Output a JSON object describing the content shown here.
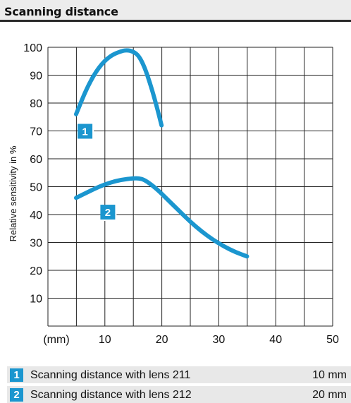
{
  "header": {
    "title": "Scanning distance"
  },
  "chart_data": {
    "type": "line",
    "title": "",
    "ylabel": "Relative sensitivity in %",
    "xlabel": "",
    "x_unit_label": "(mm)",
    "xlim": [
      0,
      50
    ],
    "ylim": [
      0,
      100
    ],
    "x_ticks": [
      10,
      20,
      30,
      40,
      50
    ],
    "y_ticks": [
      10,
      20,
      30,
      40,
      50,
      60,
      70,
      80,
      90,
      100
    ],
    "grid": true,
    "line_color": "#1b96cf",
    "series": [
      {
        "name": "1",
        "x": [
          0,
          2,
          4,
          6,
          8,
          9,
          10,
          11,
          12,
          13,
          14,
          15
        ],
        "y": [
          76,
          86,
          93,
          97,
          98.7,
          99,
          98.5,
          97,
          93,
          87,
          80,
          72
        ]
      },
      {
        "name": "2",
        "x": [
          0,
          2,
          4,
          6,
          8,
          10,
          11,
          12,
          14,
          16,
          18,
          20,
          22,
          24,
          26,
          28,
          30
        ],
        "y": [
          46,
          48,
          50,
          51.5,
          52.5,
          53,
          53,
          52.5,
          49.5,
          45.5,
          41.5,
          37.5,
          34,
          31,
          28.5,
          26.5,
          25
        ]
      }
    ],
    "labels": [
      {
        "text": "1",
        "x": 1,
        "y": 70
      },
      {
        "text": "2",
        "x": 5,
        "y": 41
      }
    ]
  },
  "legend": [
    {
      "badge": "1",
      "text": "Scanning distance with lens 211",
      "value": "10 mm"
    },
    {
      "badge": "2",
      "text": "Scanning distance with lens 212",
      "value": "20 mm"
    }
  ]
}
